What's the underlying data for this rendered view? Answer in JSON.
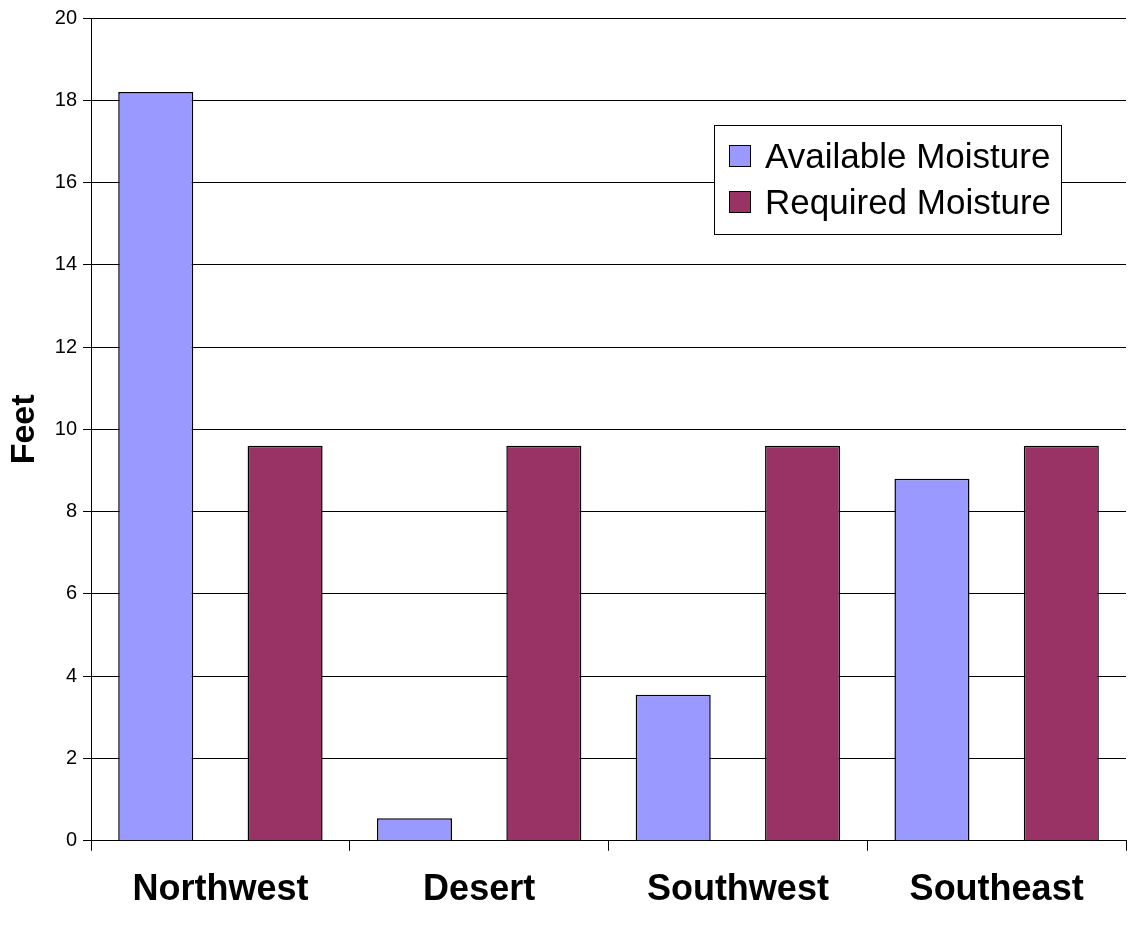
{
  "chart_data": {
    "type": "bar",
    "ylabel": "Feet",
    "categories": [
      "Northwest",
      "Desert",
      "Southwest",
      "Southeast"
    ],
    "series": [
      {
        "name": "Available Moisture",
        "color": "#9999ff",
        "values": [
          18.2,
          0.55,
          3.55,
          8.8
        ]
      },
      {
        "name": "Required Moisture",
        "color": "#993366",
        "values": [
          9.6,
          9.6,
          9.6,
          9.6
        ]
      }
    ],
    "ylim": [
      0,
      20
    ],
    "yticks": [
      0,
      2,
      4,
      6,
      8,
      10,
      12,
      14,
      16,
      18,
      20
    ],
    "grid": "y",
    "legend": "top right"
  }
}
